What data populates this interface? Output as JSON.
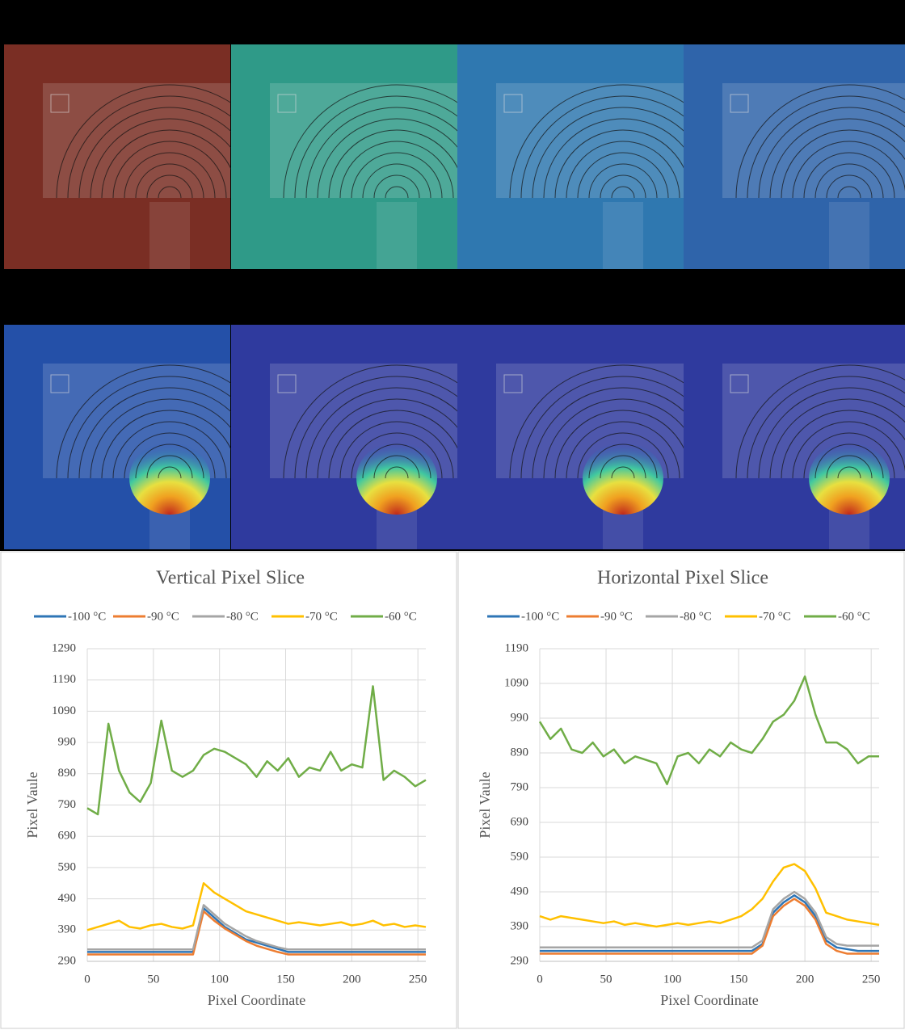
{
  "chart_data": [
    {
      "type": "line",
      "title": "Vertical Pixel Slice",
      "xlabel": "Pixel Coordinate",
      "ylabel": "Pixel Vaule",
      "x": [
        0,
        8,
        16,
        24,
        32,
        40,
        48,
        56,
        64,
        72,
        80,
        88,
        96,
        104,
        112,
        120,
        128,
        136,
        144,
        152,
        160,
        168,
        176,
        184,
        192,
        200,
        208,
        216,
        224,
        232,
        240,
        248,
        256
      ],
      "xlim": [
        0,
        256
      ],
      "xticks": [
        0,
        50,
        100,
        150,
        200,
        250
      ],
      "ylim": [
        290,
        1290
      ],
      "yticks": [
        290,
        390,
        490,
        590,
        690,
        790,
        890,
        990,
        1090,
        1190,
        1290
      ],
      "grid": true,
      "series": [
        {
          "name": "-100 °C",
          "color": "#2e75b6",
          "values": [
            320,
            320,
            320,
            320,
            320,
            320,
            320,
            320,
            320,
            320,
            320,
            460,
            430,
            400,
            380,
            360,
            350,
            340,
            330,
            320,
            320,
            320,
            320,
            320,
            320,
            320,
            320,
            320,
            320,
            320,
            320,
            320,
            320
          ]
        },
        {
          "name": "-90 °C",
          "color": "#ed7d31",
          "values": [
            312,
            312,
            312,
            312,
            312,
            312,
            312,
            312,
            312,
            312,
            312,
            450,
            420,
            395,
            375,
            355,
            340,
            330,
            320,
            312,
            312,
            312,
            312,
            312,
            312,
            312,
            312,
            312,
            312,
            312,
            312,
            312,
            312
          ]
        },
        {
          "name": "-80 °C",
          "color": "#a5a5a5",
          "values": [
            328,
            328,
            328,
            328,
            328,
            328,
            328,
            328,
            328,
            328,
            328,
            470,
            440,
            410,
            390,
            370,
            355,
            345,
            335,
            328,
            328,
            328,
            328,
            328,
            328,
            328,
            328,
            328,
            328,
            328,
            328,
            328,
            328
          ]
        },
        {
          "name": "-70 °C",
          "color": "#ffc000",
          "values": [
            390,
            400,
            410,
            420,
            400,
            395,
            405,
            410,
            400,
            395,
            405,
            540,
            510,
            490,
            470,
            450,
            440,
            430,
            420,
            410,
            415,
            410,
            405,
            410,
            415,
            405,
            410,
            420,
            405,
            410,
            400,
            405,
            400
          ]
        },
        {
          "name": "-60 °C",
          "color": "#70ad47",
          "values": [
            780,
            760,
            1050,
            900,
            830,
            800,
            860,
            1060,
            900,
            880,
            900,
            950,
            970,
            960,
            940,
            920,
            880,
            930,
            900,
            940,
            880,
            910,
            900,
            960,
            900,
            920,
            910,
            1170,
            870,
            900,
            880,
            850,
            870
          ]
        }
      ]
    },
    {
      "type": "line",
      "title": "Horizontal Pixel Slice",
      "xlabel": "Pixel Coordinate",
      "ylabel": "Pixel Vaule",
      "x": [
        0,
        8,
        16,
        24,
        32,
        40,
        48,
        56,
        64,
        72,
        80,
        88,
        96,
        104,
        112,
        120,
        128,
        136,
        144,
        152,
        160,
        168,
        176,
        184,
        192,
        200,
        208,
        216,
        224,
        232,
        240,
        248,
        256
      ],
      "xlim": [
        0,
        256
      ],
      "xticks": [
        0,
        50,
        100,
        150,
        200,
        250
      ],
      "ylim": [
        290,
        1190
      ],
      "yticks": [
        290,
        390,
        490,
        590,
        690,
        790,
        890,
        990,
        1090,
        1190
      ],
      "grid": true,
      "series": [
        {
          "name": "-100 °C",
          "color": "#2e75b6",
          "values": [
            320,
            320,
            320,
            320,
            320,
            320,
            320,
            320,
            320,
            320,
            320,
            320,
            320,
            320,
            320,
            320,
            320,
            320,
            320,
            320,
            320,
            340,
            430,
            460,
            480,
            460,
            420,
            350,
            330,
            325,
            320,
            320,
            320
          ]
        },
        {
          "name": "-90 °C",
          "color": "#ed7d31",
          "values": [
            312,
            312,
            312,
            312,
            312,
            312,
            312,
            312,
            312,
            312,
            312,
            312,
            312,
            312,
            312,
            312,
            312,
            312,
            312,
            312,
            312,
            335,
            420,
            450,
            470,
            450,
            410,
            340,
            320,
            312,
            312,
            312,
            312
          ]
        },
        {
          "name": "-80 °C",
          "color": "#a5a5a5",
          "values": [
            330,
            330,
            330,
            330,
            330,
            330,
            330,
            330,
            330,
            330,
            330,
            330,
            330,
            330,
            330,
            330,
            330,
            330,
            330,
            330,
            330,
            350,
            440,
            470,
            490,
            470,
            430,
            360,
            340,
            335,
            335,
            335,
            335
          ]
        },
        {
          "name": "-70 °C",
          "color": "#ffc000",
          "values": [
            420,
            410,
            420,
            415,
            410,
            405,
            400,
            405,
            395,
            400,
            395,
            390,
            395,
            400,
            395,
            400,
            405,
            400,
            410,
            420,
            440,
            470,
            520,
            560,
            570,
            550,
            500,
            430,
            420,
            410,
            405,
            400,
            395
          ]
        },
        {
          "name": "-60 °C",
          "color": "#70ad47",
          "values": [
            980,
            930,
            960,
            900,
            890,
            920,
            880,
            900,
            860,
            880,
            870,
            860,
            800,
            880,
            890,
            860,
            900,
            880,
            920,
            900,
            890,
            930,
            980,
            1000,
            1040,
            1110,
            1000,
            920,
            920,
            900,
            860,
            880,
            880
          ]
        }
      ]
    }
  ]
}
